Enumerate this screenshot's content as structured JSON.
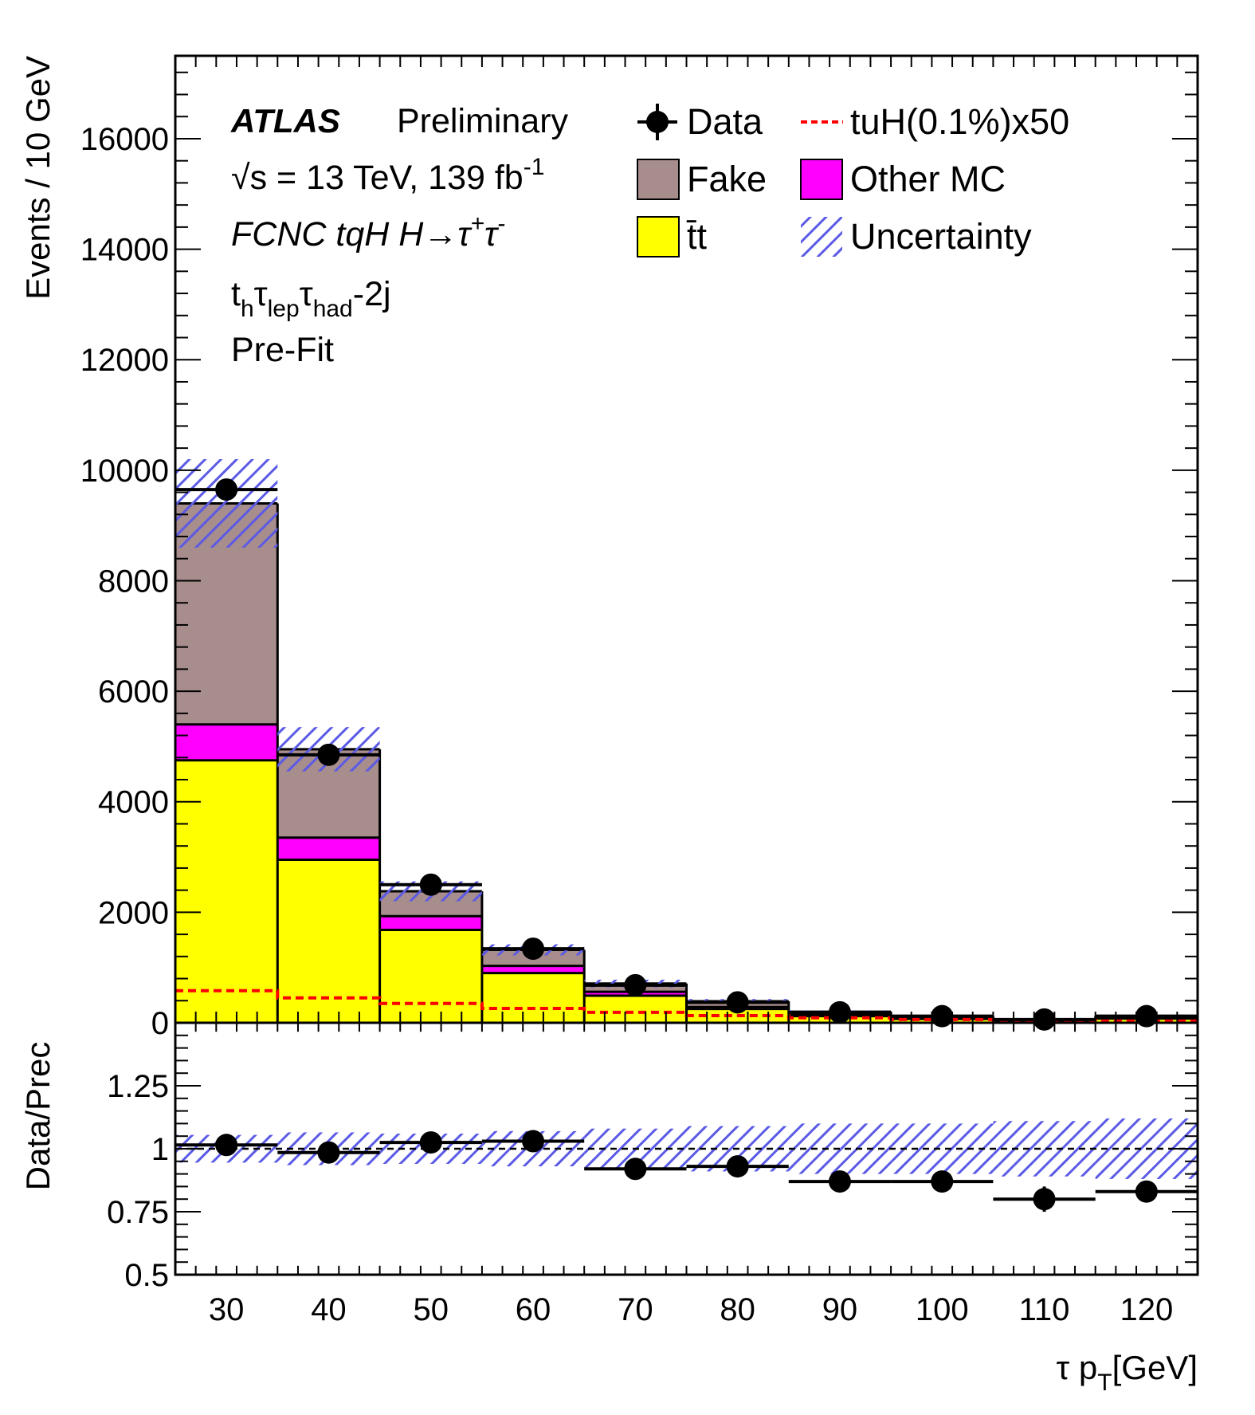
{
  "chart_data": [
    {
      "type": "bar",
      "panel": "main",
      "stacked": true,
      "ylabel": "Events / 10 GeV",
      "ylim": [
        0,
        17500
      ],
      "yticks": [
        0,
        2000,
        4000,
        6000,
        8000,
        10000,
        12000,
        14000,
        16000
      ],
      "x_bin_centers": [
        30,
        40,
        50,
        60,
        70,
        80,
        90,
        100,
        110,
        120
      ],
      "x_bin_edges": [
        25,
        35,
        45,
        55,
        65,
        75,
        85,
        95,
        105,
        115,
        125
      ],
      "series": [
        {
          "name": "t̄t",
          "color": "#ffff00",
          "values": [
            4750,
            2950,
            1680,
            900,
            490,
            250,
            120,
            70,
            35,
            75
          ]
        },
        {
          "name": "Other MC",
          "color": "#ff00ff",
          "values": [
            650,
            400,
            250,
            130,
            70,
            35,
            25,
            15,
            8,
            15
          ]
        },
        {
          "name": "Fake",
          "color": "#a88d8d",
          "values": [
            4000,
            1600,
            450,
            290,
            150,
            105,
            55,
            35,
            17,
            30
          ]
        }
      ],
      "data": {
        "name": "Data",
        "values": [
          9650,
          4850,
          2500,
          1340,
          680,
          370,
          190,
          120,
          60,
          120
        ]
      },
      "uncertainty": {
        "name": "Uncertainty",
        "color": "#5a5ae6",
        "values": [
          800,
          400,
          180,
          100,
          70,
          40,
          25,
          20,
          15,
          25
        ]
      },
      "signal": {
        "name": "tuH(0.1%)x50",
        "color": "#ff0000",
        "values": [
          580,
          450,
          350,
          260,
          190,
          130,
          90,
          60,
          40,
          30
        ]
      }
    },
    {
      "type": "scatter",
      "panel": "ratio",
      "ylabel": "Data/Prec",
      "ylim": [
        0.5,
        1.5
      ],
      "yticks": [
        0.5,
        0.75,
        1,
        1.25
      ],
      "ytick_labels": [
        "0.5",
        "0.75",
        "1",
        "1.25"
      ],
      "xlabel": "τ p_T [GeV]",
      "xlim": [
        25,
        125
      ],
      "xticks": [
        30,
        40,
        50,
        60,
        70,
        80,
        90,
        100,
        110,
        120
      ],
      "x": [
        30,
        40,
        50,
        60,
        70,
        80,
        90,
        100,
        110,
        120
      ],
      "y": [
        1.015,
        0.985,
        1.025,
        1.03,
        0.92,
        0.93,
        0.87,
        0.87,
        0.8,
        0.83
      ],
      "y_err": [
        0.006,
        0.01,
        0.015,
        0.02,
        0.028,
        0.035,
        0.03,
        0.04,
        0.05,
        0.04
      ],
      "uncertainty_band": [
        0.055,
        0.065,
        0.06,
        0.07,
        0.08,
        0.09,
        0.1,
        0.1,
        0.11,
        0.12
      ]
    }
  ],
  "info": {
    "atlas": "ATLAS",
    "preliminary": "Preliminary",
    "energy_sqrt": "√s",
    "energy": " = 13 TeV, 139 fb",
    "energy_sup": "-1",
    "process": "FCNC tqH H→τ",
    "process_sup1": "+",
    "process_tau": "τ",
    "process_sup2": "-",
    "channel_t": "t",
    "channel_h": "h",
    "channel_tau1": "τ",
    "channel_lep": "lep",
    "channel_tau2": "τ",
    "channel_had": "had",
    "channel_suffix": "-2j",
    "stage": "Pre-Fit"
  },
  "legend": {
    "data": "Data",
    "signal": "tuH(0.1%)x50",
    "fake": "Fake",
    "othermc": "Other MC",
    "ttbar": "t̄t",
    "uncertainty": "Uncertainty"
  },
  "axis": {
    "main_ylabel": "Events / 10 GeV",
    "ratio_ylabel": "Data/Prec",
    "xlabel_tau": "τ p",
    "xlabel_sub": "T",
    "xlabel_unit": "[GeV]"
  },
  "colors": {
    "ttbar": "#ffff00",
    "othermc": "#ff00ff",
    "fake": "#a88d8d",
    "signal": "#ff0000",
    "hatch": "#5a5ae6"
  }
}
